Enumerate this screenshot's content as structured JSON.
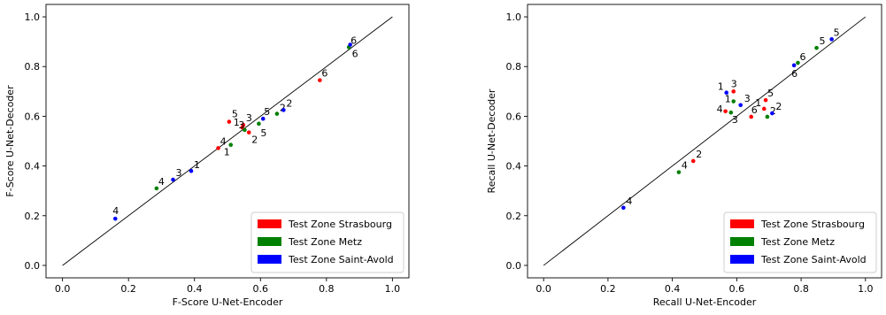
{
  "chart_data": [
    {
      "type": "scatter",
      "title": "",
      "xlabel": "F-Score U-Net-Encoder",
      "ylabel": "F-Score U-Net-Decoder",
      "xlim": [
        -0.05,
        1.05
      ],
      "ylim": [
        -0.05,
        1.05
      ],
      "xticks": [
        0.0,
        0.2,
        0.4,
        0.6,
        0.8,
        1.0
      ],
      "yticks": [
        0.0,
        0.2,
        0.4,
        0.6,
        0.8,
        1.0
      ],
      "xtick_labels": [
        "0.0",
        "0.2",
        "0.4",
        "0.6",
        "0.8",
        "1.0"
      ],
      "ytick_labels": [
        "0.0",
        "0.2",
        "0.4",
        "0.6",
        "0.8",
        "1.0"
      ],
      "diagonal": true,
      "grid": false,
      "legend_position": "bottom-right",
      "series": [
        {
          "name": "Test Zone Strasbourg",
          "color": "#ff0000",
          "points": [
            {
              "x": 0.545,
              "y": 0.555,
              "label": "1"
            },
            {
              "x": 0.565,
              "y": 0.535,
              "label": "2"
            },
            {
              "x": 0.548,
              "y": 0.565,
              "label": "3"
            },
            {
              "x": 0.472,
              "y": 0.472,
              "label": "4"
            },
            {
              "x": 0.505,
              "y": 0.578,
              "label": "5"
            },
            {
              "x": 0.78,
              "y": 0.745,
              "label": "6"
            }
          ]
        },
        {
          "name": "Test Zone Metz",
          "color": "#008000",
          "points": [
            {
              "x": 0.51,
              "y": 0.485,
              "label": "1"
            },
            {
              "x": 0.65,
              "y": 0.61,
              "label": "2"
            },
            {
              "x": 0.552,
              "y": 0.545,
              "label": "3"
            },
            {
              "x": 0.285,
              "y": 0.31,
              "label": "4"
            },
            {
              "x": 0.595,
              "y": 0.57,
              "label": "5"
            },
            {
              "x": 0.868,
              "y": 0.878,
              "label": "6"
            }
          ]
        },
        {
          "name": "Test Zone Saint-Avold",
          "color": "#0000ff",
          "points": [
            {
              "x": 0.39,
              "y": 0.38,
              "label": "1"
            },
            {
              "x": 0.67,
              "y": 0.625,
              "label": "2"
            },
            {
              "x": 0.335,
              "y": 0.345,
              "label": "3"
            },
            {
              "x": 0.16,
              "y": 0.188,
              "label": "4"
            },
            {
              "x": 0.608,
              "y": 0.59,
              "label": "5"
            },
            {
              "x": 0.872,
              "y": 0.888,
              "label": "6"
            }
          ]
        }
      ]
    },
    {
      "type": "scatter",
      "title": "",
      "xlabel": "Recall U-Net-Encoder",
      "ylabel": "Recall U-Net-Decoder",
      "xlim": [
        -0.05,
        1.05
      ],
      "ylim": [
        -0.05,
        1.05
      ],
      "xticks": [
        0.0,
        0.2,
        0.4,
        0.6,
        0.8,
        1.0
      ],
      "yticks": [
        0.0,
        0.2,
        0.4,
        0.6,
        0.8,
        1.0
      ],
      "xtick_labels": [
        "0.0",
        "0.2",
        "0.4",
        "0.6",
        "0.8",
        "1.0"
      ],
      "ytick_labels": [
        "0.0",
        "0.2",
        "0.4",
        "0.6",
        "0.8",
        "1.0"
      ],
      "diagonal": true,
      "grid": false,
      "legend_position": "bottom-right",
      "series": [
        {
          "name": "Test Zone Strasbourg",
          "color": "#ff0000",
          "points": [
            {
              "x": 0.685,
              "y": 0.63,
              "label": "1"
            },
            {
              "x": 0.465,
              "y": 0.42,
              "label": "2"
            },
            {
              "x": 0.59,
              "y": 0.7,
              "label": "3"
            },
            {
              "x": 0.565,
              "y": 0.62,
              "label": "4"
            },
            {
              "x": 0.69,
              "y": 0.665,
              "label": "5"
            },
            {
              "x": 0.645,
              "y": 0.598,
              "label": "6"
            }
          ]
        },
        {
          "name": "Test Zone Metz",
          "color": "#008000",
          "points": [
            {
              "x": 0.59,
              "y": 0.66,
              "label": "1"
            },
            {
              "x": 0.695,
              "y": 0.598,
              "label": "2"
            },
            {
              "x": 0.582,
              "y": 0.615,
              "label": "3"
            },
            {
              "x": 0.42,
              "y": 0.375,
              "label": "4"
            },
            {
              "x": 0.848,
              "y": 0.875,
              "label": "5"
            },
            {
              "x": 0.79,
              "y": 0.815,
              "label": "6"
            }
          ]
        },
        {
          "name": "Test Zone Saint-Avold",
          "color": "#0000ff",
          "points": [
            {
              "x": 0.568,
              "y": 0.695,
              "label": "1"
            },
            {
              "x": 0.71,
              "y": 0.612,
              "label": "2"
            },
            {
              "x": 0.612,
              "y": 0.645,
              "label": "3"
            },
            {
              "x": 0.248,
              "y": 0.232,
              "label": "4"
            },
            {
              "x": 0.895,
              "y": 0.91,
              "label": "5"
            },
            {
              "x": 0.778,
              "y": 0.805,
              "label": "6"
            }
          ]
        }
      ]
    }
  ]
}
